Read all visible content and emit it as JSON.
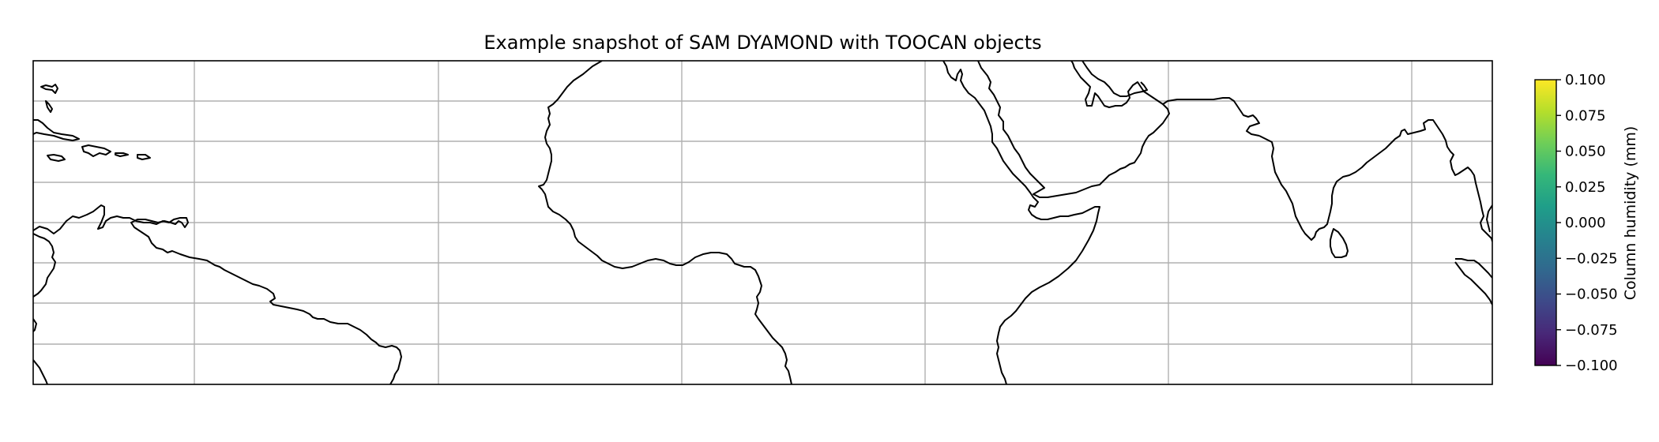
{
  "map": {
    "title": "Example snapshot of SAM DYAMOND with TOOCAN objects",
    "projection": "PlateCarree",
    "gridlines": true,
    "gridline_color": "#b0b0b0",
    "coastline_color": "#000000",
    "gridline_lon_count": 5,
    "gridline_lat_count": 7,
    "regions_visible": [
      "Caribbean",
      "South America (north)",
      "West Africa",
      "Horn of Africa",
      "Arabian Peninsula",
      "India",
      "Sri Lanka",
      "Southeast Asia (Malay Peninsula)"
    ]
  },
  "colorbar": {
    "label": "Column humidity (mm)",
    "colormap": "viridis",
    "vmin": -0.1,
    "vmax": 0.1,
    "ticks": [
      "0.100",
      "0.075",
      "0.050",
      "0.025",
      "0.000",
      "−0.025",
      "−0.050",
      "−0.075",
      "−0.100"
    ],
    "colors": [
      "#440154",
      "#482878",
      "#3e4989",
      "#31688e",
      "#26828e",
      "#1f9e89",
      "#35b779",
      "#6ece58",
      "#b5de2b",
      "#fde725"
    ]
  }
}
